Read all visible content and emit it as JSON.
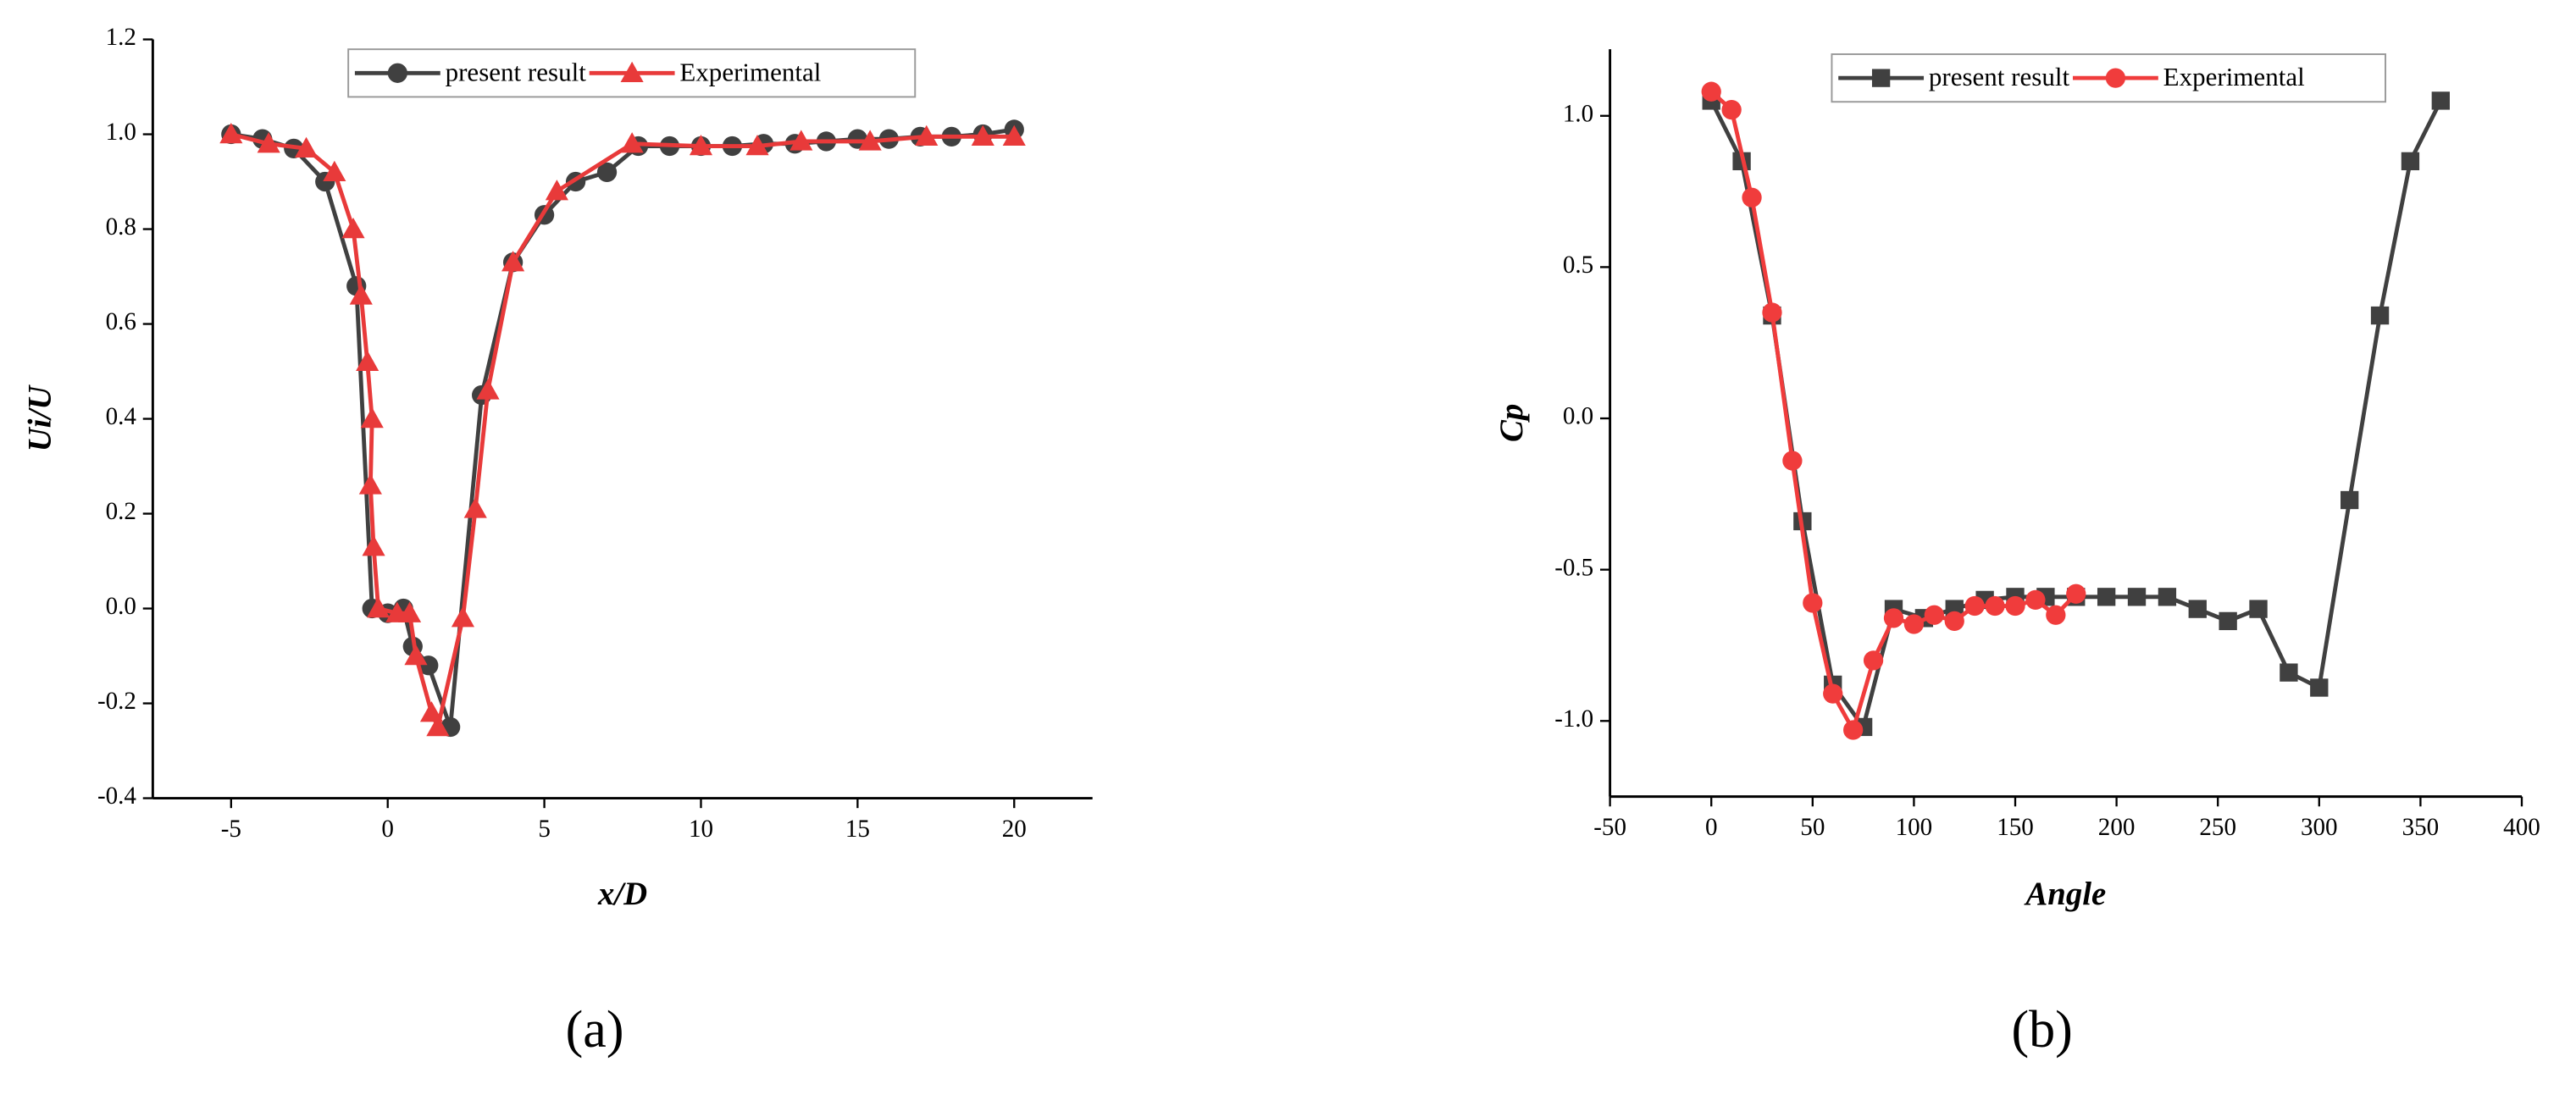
{
  "chart_data": [
    {
      "type": "line",
      "panel_label": "(a)",
      "x_label": "x/D",
      "y_label": "Ui/U",
      "xlim": [
        -7.5,
        22.5
      ],
      "xticks": [
        -5,
        0,
        5,
        10,
        15,
        20
      ],
      "ylim": [
        -0.4,
        1.2
      ],
      "yticks": [
        -0.4,
        -0.2,
        {
          "value": 0,
          "label": "0.0"
        },
        0.2,
        0.4,
        0.6,
        0.8,
        {
          "value": 1,
          "label": "1.0"
        },
        1.2
      ],
      "series": [
        {
          "name": "present result",
          "color": "#404040",
          "marker": "circle",
          "x": [
            -5,
            -4,
            -3,
            -2,
            -1,
            -0.5,
            0,
            0.5,
            0.8,
            1.3,
            2,
            3,
            4,
            5,
            6,
            7,
            8,
            9,
            10,
            11,
            12,
            13,
            14,
            15,
            16,
            17,
            18,
            19,
            20
          ],
          "values": [
            1.0,
            0.99,
            0.97,
            0.9,
            0.68,
            0.0,
            -0.01,
            0.0,
            -0.08,
            -0.12,
            -0.25,
            0.45,
            0.73,
            0.83,
            0.9,
            0.92,
            0.975,
            0.975,
            0.975,
            0.975,
            0.98,
            0.98,
            0.985,
            0.99,
            0.99,
            0.995,
            0.995,
            1.0,
            1.01
          ]
        },
        {
          "name": "Experimental",
          "color": "#e83a3a",
          "marker": "triangle",
          "x": [
            -5,
            -3.8,
            -2.6,
            -1.7,
            -1.1,
            -0.85,
            -0.65,
            -0.5,
            -0.55,
            -0.45,
            -0.3,
            0.3,
            0.7,
            0.9,
            1.4,
            1.6,
            2.4,
            2.8,
            3.2,
            4.0,
            5.4,
            7.8,
            10.0,
            11.8,
            13.2,
            15.4,
            17.2,
            19.0,
            20.0
          ],
          "values": [
            1.0,
            0.98,
            0.97,
            0.92,
            0.8,
            0.66,
            0.52,
            0.4,
            0.26,
            0.13,
            0.0,
            -0.01,
            -0.01,
            -0.1,
            -0.22,
            -0.25,
            -0.02,
            0.21,
            0.46,
            0.73,
            0.88,
            0.98,
            0.975,
            0.975,
            0.985,
            0.985,
            0.995,
            0.995,
            0.995
          ]
        }
      ]
    },
    {
      "type": "line",
      "panel_label": "(b)",
      "x_label": "Angle",
      "y_label": "Cp",
      "xlim": [
        -50,
        400
      ],
      "xticks": [
        -50,
        0,
        50,
        100,
        150,
        200,
        250,
        300,
        350,
        400
      ],
      "ylim": [
        -1.25,
        1.22
      ],
      "yticks": [
        {
          "value": -1,
          "label": "-1.0"
        },
        -0.5,
        {
          "value": 0,
          "label": "0.0"
        },
        0.5,
        {
          "value": 1,
          "label": "1.0"
        }
      ],
      "series": [
        {
          "name": "present result",
          "color": "#404040",
          "marker": "square",
          "x": [
            0,
            15,
            30,
            45,
            60,
            75,
            90,
            105,
            120,
            135,
            150,
            165,
            180,
            195,
            210,
            225,
            240,
            255,
            270,
            285,
            300,
            315,
            330,
            345,
            360
          ],
          "values": [
            1.05,
            0.85,
            0.34,
            -0.34,
            -0.88,
            -1.02,
            -0.63,
            -0.66,
            -0.63,
            -0.6,
            -0.59,
            -0.59,
            -0.59,
            -0.59,
            -0.59,
            -0.59,
            -0.63,
            -0.67,
            -0.63,
            -0.84,
            -0.89,
            -0.27,
            0.34,
            0.85,
            1.05
          ]
        },
        {
          "name": "Experimental",
          "color": "#f03c3c",
          "marker": "circle",
          "x": [
            0,
            10,
            20,
            30,
            40,
            50,
            60,
            70,
            80,
            90,
            100,
            110,
            120,
            130,
            140,
            150,
            160,
            170,
            180
          ],
          "values": [
            1.08,
            1.02,
            0.73,
            0.35,
            -0.14,
            -0.61,
            -0.91,
            -1.03,
            -0.8,
            -0.66,
            -0.68,
            -0.65,
            -0.67,
            -0.62,
            -0.62,
            -0.62,
            -0.6,
            -0.65,
            -0.58
          ]
        }
      ]
    }
  ]
}
